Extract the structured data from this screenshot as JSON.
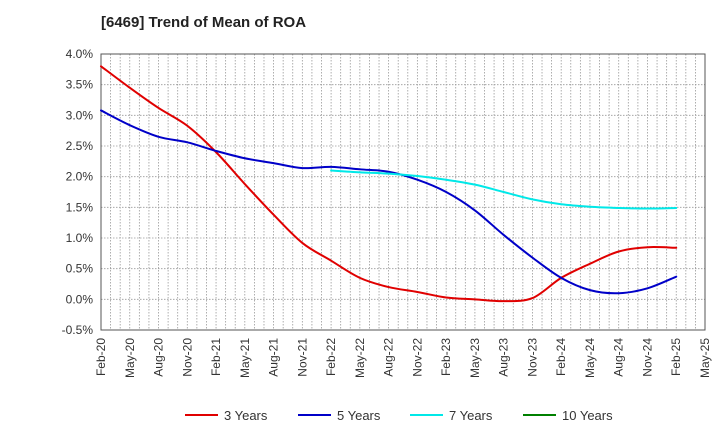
{
  "chart_data": {
    "type": "line",
    "title": "[6469]  Trend of Mean of ROA",
    "xlabel": "",
    "ylabel": "",
    "ylim": [
      -0.5,
      4.0
    ],
    "y_ticks": [
      "-0.5%",
      "0.0%",
      "0.5%",
      "1.0%",
      "1.5%",
      "2.0%",
      "2.5%",
      "3.0%",
      "3.5%",
      "4.0%"
    ],
    "x_ticks": [
      "Feb-20",
      "May-20",
      "Aug-20",
      "Nov-20",
      "Feb-21",
      "May-21",
      "Aug-21",
      "Nov-21",
      "Feb-22",
      "May-22",
      "Aug-22",
      "Nov-22",
      "Feb-23",
      "May-23",
      "Aug-23",
      "Nov-23",
      "Feb-24",
      "May-24",
      "Aug-24",
      "Nov-24",
      "Feb-25",
      "May-25"
    ],
    "grid": true,
    "legend_position": "bottom",
    "series": [
      {
        "name": "3 Years",
        "color": "#e00000",
        "x": [
          0,
          1,
          2,
          3,
          4,
          5,
          6,
          7,
          8,
          9,
          10,
          11,
          12,
          13,
          14,
          15,
          16,
          17,
          18,
          19,
          20
        ],
        "values": [
          3.8,
          3.45,
          3.12,
          2.83,
          2.4,
          1.88,
          1.38,
          0.92,
          0.63,
          0.35,
          0.2,
          0.12,
          0.03,
          0.0,
          -0.03,
          0.02,
          0.35,
          0.58,
          0.78,
          0.85,
          0.84
        ]
      },
      {
        "name": "5 Years",
        "color": "#0000c8",
        "x": [
          0,
          1,
          2,
          3,
          4,
          5,
          6,
          7,
          8,
          9,
          10,
          11,
          12,
          13,
          14,
          15,
          16,
          17,
          18,
          19,
          20
        ],
        "values": [
          3.08,
          2.84,
          2.65,
          2.56,
          2.42,
          2.3,
          2.22,
          2.14,
          2.16,
          2.12,
          2.08,
          1.95,
          1.75,
          1.45,
          1.05,
          0.68,
          0.35,
          0.15,
          0.1,
          0.18,
          0.37
        ]
      },
      {
        "name": "7 Years",
        "color": "#00e8e8",
        "x": [
          8,
          9,
          10,
          11,
          12,
          13,
          14,
          15,
          16,
          17,
          18,
          19,
          20
        ],
        "values": [
          2.1,
          2.07,
          2.05,
          2.01,
          1.95,
          1.87,
          1.75,
          1.63,
          1.55,
          1.51,
          1.49,
          1.48,
          1.49
        ]
      },
      {
        "name": "10 Years",
        "color": "#008000",
        "x": [],
        "values": []
      }
    ]
  }
}
